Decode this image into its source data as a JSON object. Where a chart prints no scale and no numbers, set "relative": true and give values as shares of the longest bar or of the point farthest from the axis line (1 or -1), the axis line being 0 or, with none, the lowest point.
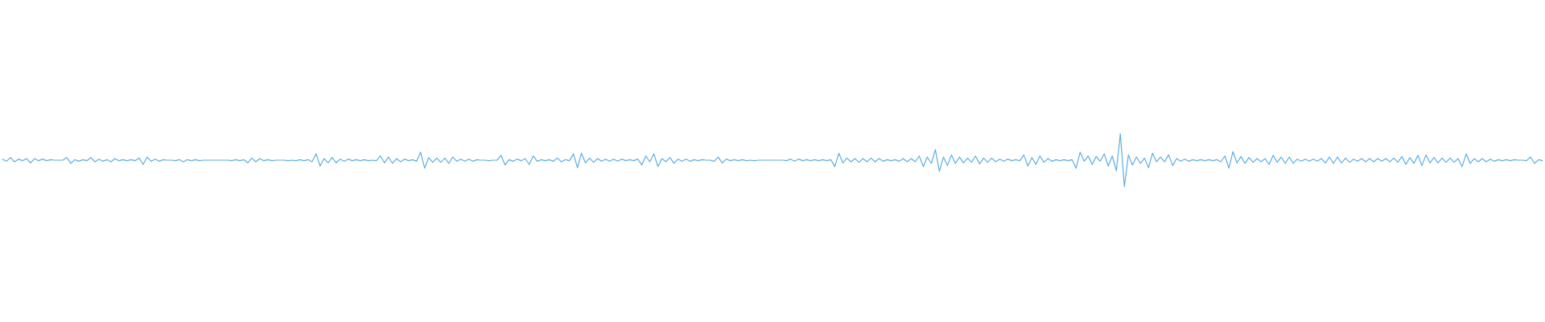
{
  "chart_data": {
    "type": "line",
    "relative": true,
    "color": "#5dade2",
    "marker": "none",
    "line_style": "solid",
    "categories": [
      null,
      null,
      null,
      null,
      null,
      null,
      null,
      null,
      null,
      null,
      null,
      null,
      null,
      null,
      null,
      null,
      null,
      null,
      null,
      null,
      null,
      null,
      null,
      null,
      null,
      null,
      null,
      null,
      null,
      null,
      null,
      null,
      null,
      null,
      null,
      null,
      null,
      null,
      null,
      null,
      null,
      null,
      null,
      null,
      null,
      null,
      null,
      null,
      null,
      null,
      null,
      null,
      null,
      null,
      null,
      null,
      null,
      null,
      null,
      null,
      null,
      null,
      null,
      null,
      null,
      null,
      null,
      null,
      null,
      null,
      null,
      null,
      null,
      null,
      null,
      null,
      null,
      null,
      null,
      null,
      null,
      null,
      null,
      null,
      null,
      null,
      null,
      null,
      null,
      null,
      null,
      null,
      null,
      null,
      null,
      null,
      null,
      null,
      null,
      null,
      null,
      null,
      null,
      null,
      null,
      null,
      null,
      null,
      null,
      null,
      null,
      null,
      null,
      null,
      null,
      null,
      null,
      null,
      null,
      null,
      null,
      null,
      null,
      null,
      null,
      null,
      null,
      null,
      null,
      null,
      null,
      null,
      null,
      null,
      null,
      null,
      null,
      null,
      null,
      null,
      null,
      null,
      null,
      null,
      null,
      null,
      null,
      null,
      null,
      null,
      null,
      null,
      null,
      null,
      null,
      null,
      null,
      null,
      null,
      null,
      null,
      null,
      null,
      null,
      null,
      null,
      null,
      null,
      null,
      null,
      null,
      null,
      null,
      null,
      null,
      null,
      null,
      null,
      null,
      null,
      null,
      null,
      null,
      null,
      null,
      null,
      null,
      null,
      null,
      null,
      null,
      null,
      null,
      null,
      null,
      null,
      null,
      null,
      null,
      null,
      null,
      null,
      null,
      null,
      null,
      null,
      null,
      null,
      null,
      null,
      null,
      null,
      null,
      null,
      null,
      null,
      null,
      null,
      null,
      null,
      null,
      null,
      null,
      null,
      null,
      null,
      null,
      null,
      null,
      null,
      null,
      null,
      null,
      null,
      null,
      null,
      null,
      null,
      null,
      null,
      null,
      null,
      null,
      null,
      null,
      null,
      null,
      null,
      null,
      null,
      null,
      null,
      null,
      null,
      null,
      null,
      null,
      null,
      null,
      null,
      null,
      null,
      null,
      null,
      null,
      null,
      null,
      null,
      null,
      null,
      null,
      null,
      null,
      null,
      null,
      null,
      null,
      null,
      null,
      null,
      null,
      null,
      null,
      null,
      null,
      null,
      null,
      null,
      null,
      null,
      null,
      null,
      null,
      null,
      null,
      null,
      null,
      null,
      null,
      null,
      null,
      null,
      null,
      null,
      null,
      null,
      null,
      null,
      null,
      null,
      null,
      null,
      null,
      null,
      null,
      null,
      null,
      null,
      null,
      null,
      null,
      null,
      null,
      null,
      null,
      null,
      null,
      null,
      null,
      null,
      null,
      null,
      null,
      null,
      null,
      null,
      null,
      null,
      null,
      null,
      null,
      null,
      null,
      null,
      null,
      null,
      null,
      null,
      null,
      null,
      null,
      null,
      null,
      null,
      null,
      null,
      null,
      null,
      null,
      null,
      null,
      null,
      null,
      null,
      null,
      null,
      null,
      null,
      null,
      null,
      null,
      null,
      null,
      null,
      null,
      null,
      null,
      null,
      null,
      null,
      null,
      null,
      null,
      null
    ],
    "values": [
      0.52,
      0.48,
      0.55,
      0.47,
      0.52,
      0.49,
      0.53,
      0.45,
      0.53,
      0.49,
      0.52,
      0.49,
      0.51,
      0.5,
      0.5,
      0.5,
      0.55,
      0.44,
      0.51,
      0.48,
      0.51,
      0.49,
      0.55,
      0.47,
      0.52,
      0.48,
      0.51,
      0.47,
      0.53,
      0.49,
      0.51,
      0.49,
      0.51,
      0.49,
      0.54,
      0.42,
      0.56,
      0.48,
      0.52,
      0.48,
      0.51,
      0.5,
      0.5,
      0.49,
      0.51,
      0.47,
      0.51,
      0.49,
      0.51,
      0.49,
      0.5,
      0.5,
      0.5,
      0.5,
      0.5,
      0.5,
      0.5,
      0.49,
      0.51,
      0.49,
      0.51,
      0.45,
      0.54,
      0.47,
      0.53,
      0.49,
      0.51,
      0.49,
      0.5,
      0.5,
      0.5,
      0.49,
      0.5,
      0.49,
      0.51,
      0.49,
      0.51,
      0.47,
      0.62,
      0.39,
      0.53,
      0.45,
      0.55,
      0.45,
      0.52,
      0.48,
      0.52,
      0.49,
      0.51,
      0.49,
      0.51,
      0.49,
      0.5,
      0.49,
      0.58,
      0.45,
      0.56,
      0.44,
      0.53,
      0.47,
      0.52,
      0.49,
      0.51,
      0.48,
      0.65,
      0.35,
      0.55,
      0.46,
      0.54,
      0.46,
      0.54,
      0.44,
      0.56,
      0.48,
      0.52,
      0.48,
      0.52,
      0.48,
      0.51,
      0.5,
      0.5,
      0.49,
      0.5,
      0.5,
      0.59,
      0.41,
      0.51,
      0.48,
      0.52,
      0.49,
      0.53,
      0.42,
      0.58,
      0.48,
      0.51,
      0.49,
      0.51,
      0.48,
      0.54,
      0.47,
      0.51,
      0.49,
      0.62,
      0.36,
      0.63,
      0.45,
      0.54,
      0.46,
      0.53,
      0.48,
      0.52,
      0.48,
      0.52,
      0.48,
      0.52,
      0.49,
      0.51,
      0.49,
      0.52,
      0.41,
      0.58,
      0.47,
      0.62,
      0.38,
      0.53,
      0.47,
      0.55,
      0.44,
      0.52,
      0.48,
      0.52,
      0.48,
      0.51,
      0.49,
      0.51,
      0.5,
      0.5,
      0.48,
      0.56,
      0.45,
      0.52,
      0.49,
      0.51,
      0.49,
      0.51,
      0.49,
      0.5,
      0.49,
      0.5,
      0.5,
      0.5,
      0.5,
      0.5,
      0.5,
      0.5,
      0.49,
      0.52,
      0.48,
      0.52,
      0.49,
      0.51,
      0.49,
      0.51,
      0.49,
      0.51,
      0.49,
      0.51,
      0.38,
      0.63,
      0.45,
      0.54,
      0.47,
      0.53,
      0.46,
      0.53,
      0.47,
      0.54,
      0.47,
      0.53,
      0.48,
      0.51,
      0.49,
      0.51,
      0.48,
      0.53,
      0.47,
      0.53,
      0.47,
      0.58,
      0.38,
      0.56,
      0.44,
      0.7,
      0.29,
      0.56,
      0.4,
      0.6,
      0.44,
      0.56,
      0.45,
      0.54,
      0.46,
      0.58,
      0.43,
      0.54,
      0.46,
      0.54,
      0.47,
      0.52,
      0.48,
      0.52,
      0.49,
      0.51,
      0.49,
      0.6,
      0.39,
      0.55,
      0.42,
      0.58,
      0.46,
      0.53,
      0.48,
      0.51,
      0.49,
      0.51,
      0.49,
      0.51,
      0.35,
      0.65,
      0.48,
      0.58,
      0.42,
      0.57,
      0.48,
      0.62,
      0.39,
      0.58,
      0.3,
      1,
      0,
      0.6,
      0.41,
      0.56,
      0.44,
      0.54,
      0.36,
      0.63,
      0.47,
      0.56,
      0.47,
      0.6,
      0.4,
      0.53,
      0.48,
      0.52,
      0.48,
      0.51,
      0.49,
      0.51,
      0.49,
      0.51,
      0.49,
      0.51,
      0.47,
      0.58,
      0.35,
      0.66,
      0.45,
      0.57,
      0.44,
      0.55,
      0.46,
      0.53,
      0.47,
      0.53,
      0.42,
      0.59,
      0.46,
      0.56,
      0.44,
      0.56,
      0.44,
      0.52,
      0.48,
      0.52,
      0.48,
      0.52,
      0.48,
      0.53,
      0.45,
      0.56,
      0.44,
      0.56,
      0.45,
      0.54,
      0.46,
      0.52,
      0.48,
      0.53,
      0.47,
      0.53,
      0.47,
      0.53,
      0.48,
      0.53,
      0.47,
      0.54,
      0.46,
      0.57,
      0.42,
      0.55,
      0.44,
      0.59,
      0.4,
      0.6,
      0.45,
      0.55,
      0.45,
      0.54,
      0.46,
      0.54,
      0.46,
      0.53,
      0.38,
      0.62,
      0.44,
      0.53,
      0.47,
      0.53,
      0.47,
      0.52,
      0.48,
      0.51,
      0.49,
      0.51,
      0.49,
      0.51,
      0.5,
      0.5,
      0.49,
      0.56,
      0.44,
      0.51,
      0.49
    ]
  }
}
